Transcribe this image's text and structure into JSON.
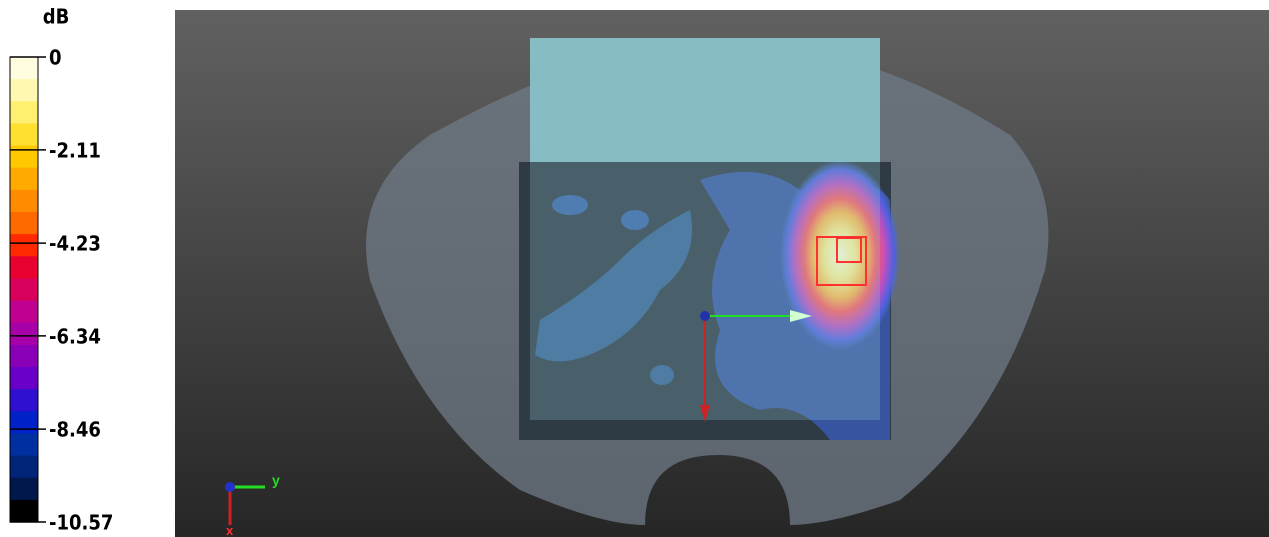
{
  "colorbar": {
    "unit": "dB",
    "ticks": [
      0,
      -2.11,
      -4.23,
      -6.34,
      -8.46,
      -10.57
    ]
  },
  "axes_triad": {
    "y": "y",
    "x": "x"
  }
}
